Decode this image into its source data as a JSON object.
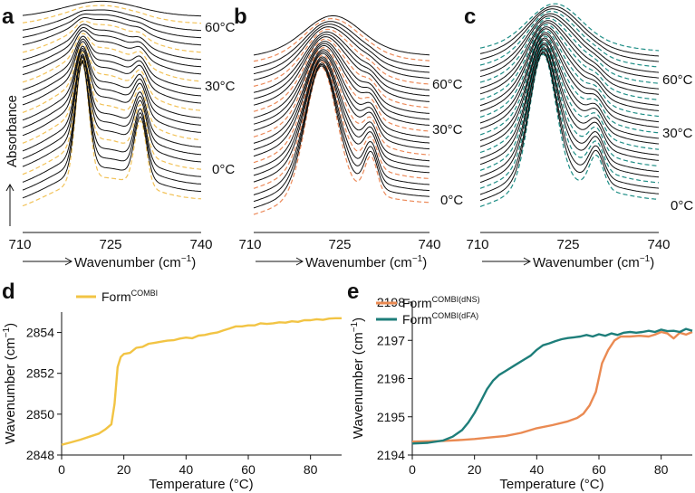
{
  "figure": {
    "panel_labels": [
      "a",
      "b",
      "c",
      "d",
      "e"
    ]
  },
  "chart_data": [
    {
      "panel": "a",
      "type": "line",
      "title": "",
      "xlabel": "Wavenumber (cm⁻¹)",
      "xlabel_main": "Wavenumber (cm",
      "xlabel_sup": "−1",
      "xlabel_close": ")",
      "ylabel": "Absorbance",
      "xlim": [
        710,
        740
      ],
      "xticks": [
        "710",
        "725",
        "740"
      ],
      "temperature_labels": [
        "60°C",
        "30°C",
        "0°C"
      ],
      "dashed_color": "#f2c257",
      "solid_color": "#111111",
      "spectrum": {
        "ordered_peaks": [
          {
            "x": 720.0,
            "h": 1.0,
            "w": 1.1
          },
          {
            "x": 729.8,
            "h": 0.55,
            "w": 1.0
          }
        ],
        "melted_peaks": [
          {
            "x": 723.5,
            "h": 0.55,
            "w": 5.5
          }
        ],
        "broad_peak": {
          "x": 722.5,
          "h": 0.45,
          "w": 8.0
        }
      },
      "n_curves": 26
    },
    {
      "panel": "b",
      "type": "line",
      "title": "",
      "xlabel": "Wavenumber (cm⁻¹)",
      "xlabel_main": "Wavenumber (cm",
      "xlabel_sup": "−1",
      "xlabel_close": ")",
      "xlim": [
        710,
        740
      ],
      "xticks": [
        "710",
        "725",
        "740"
      ],
      "temperature_labels": [
        "60°C",
        "30°C",
        "0°C"
      ],
      "dashed_color": "#ec8a5a",
      "solid_color": "#111111",
      "spectrum": {
        "ordered_peaks": [
          {
            "x": 721.5,
            "h": 1.0,
            "w": 2.6
          },
          {
            "x": 730.0,
            "h": 0.3,
            "w": 1.1
          }
        ],
        "melted_peaks": [
          {
            "x": 723.5,
            "h": 0.75,
            "w": 4.5
          }
        ],
        "broad_peak": {
          "x": 723.0,
          "h": 0.3,
          "w": 9.0
        }
      },
      "n_curves": 26
    },
    {
      "panel": "c",
      "type": "line",
      "title": "",
      "xlabel": "Wavenumber (cm⁻¹)",
      "xlabel_main": "Wavenumber (cm",
      "xlabel_sup": "−1",
      "xlabel_close": ")",
      "xlim": [
        710,
        740
      ],
      "xticks": [
        "710",
        "725",
        "740"
      ],
      "temperature_labels": [
        "60°C",
        "30°C",
        "0°C"
      ],
      "dashed_color": "#1e8e86",
      "solid_color": "#111111",
      "spectrum": {
        "ordered_peaks": [
          {
            "x": 720.5,
            "h": 1.0,
            "w": 2.2
          },
          {
            "x": 729.5,
            "h": 0.25,
            "w": 1.2
          }
        ],
        "melted_peaks": [
          {
            "x": 722.5,
            "h": 0.8,
            "w": 4.2
          }
        ],
        "broad_peak": {
          "x": 722.5,
          "h": 0.35,
          "w": 9.0
        }
      },
      "n_curves": 28
    },
    {
      "panel": "d",
      "type": "line",
      "title": "",
      "xlabel": "Temperature (°C)",
      "ylabel": "Wavenumber (cm⁻¹)",
      "ylabel_main": "Wavenumber (cm",
      "ylabel_sup": "−1",
      "ylabel_close": ")",
      "xlim": [
        0,
        90
      ],
      "ylim": [
        2848,
        2855
      ],
      "xticks": [
        0,
        20,
        40,
        60,
        80
      ],
      "yticks": [
        2848,
        2850,
        2852,
        2854
      ],
      "legend": "top-left",
      "series": [
        {
          "name": "FormCOMBI",
          "name_main": "Form",
          "name_sup": "COMBI",
          "color": "#f2c444",
          "x": [
            0,
            3,
            6,
            9,
            12,
            14,
            16,
            17,
            18,
            19,
            20,
            22,
            24,
            26,
            28,
            30,
            32,
            34,
            36,
            38,
            40,
            42,
            44,
            46,
            48,
            50,
            52,
            54,
            56,
            58,
            60,
            62,
            64,
            66,
            68,
            70,
            72,
            74,
            76,
            78,
            80,
            82,
            84,
            86,
            88,
            90
          ],
          "y": [
            2848.5,
            2848.62,
            2848.75,
            2848.9,
            2849.05,
            2849.25,
            2849.5,
            2850.5,
            2852.3,
            2852.8,
            2852.95,
            2853.0,
            2853.25,
            2853.3,
            2853.45,
            2853.5,
            2853.55,
            2853.6,
            2853.62,
            2853.7,
            2853.75,
            2853.72,
            2853.85,
            2853.88,
            2853.95,
            2854.0,
            2854.1,
            2854.2,
            2854.3,
            2854.3,
            2854.35,
            2854.35,
            2854.45,
            2854.42,
            2854.45,
            2854.5,
            2854.48,
            2854.55,
            2854.52,
            2854.6,
            2854.6,
            2854.65,
            2854.62,
            2854.68,
            2854.7,
            2854.7
          ]
        }
      ]
    },
    {
      "panel": "e",
      "type": "line",
      "title": "",
      "xlabel": "Temperature (°C)",
      "ylabel": "Wavenumber (cm⁻¹)",
      "ylabel_main": "Wavenumber (cm",
      "ylabel_sup": "−1",
      "ylabel_close": ")",
      "xlim": [
        0,
        90
      ],
      "ylim": [
        2194,
        2198
      ],
      "xticks": [
        0,
        20,
        40,
        60,
        80
      ],
      "yticks": [
        2194,
        2195,
        2196,
        2197,
        2198
      ],
      "legend": "top-left",
      "series": [
        {
          "name": "FormCOMBI(dNS)",
          "name_main": "Form",
          "name_sup": "COMBI(dNS)",
          "color": "#ea8a52",
          "x": [
            0,
            5,
            10,
            15,
            20,
            25,
            30,
            35,
            40,
            45,
            50,
            53,
            55,
            57,
            59,
            61,
            63,
            65,
            67,
            70,
            73,
            76,
            78,
            80,
            82,
            84,
            86,
            88,
            90
          ],
          "y": [
            2194.35,
            2194.36,
            2194.37,
            2194.39,
            2194.42,
            2194.46,
            2194.5,
            2194.58,
            2194.7,
            2194.78,
            2194.88,
            2194.97,
            2195.08,
            2195.3,
            2195.65,
            2196.4,
            2196.75,
            2197.0,
            2197.1,
            2197.1,
            2197.12,
            2197.1,
            2197.15,
            2197.22,
            2197.18,
            2197.05,
            2197.2,
            2197.15,
            2197.22
          ]
        },
        {
          "name": "FormCOMBI(dFA)",
          "name_main": "Form",
          "name_sup": "COMBI(dFA)",
          "color": "#1e7e7a",
          "x": [
            0,
            5,
            10,
            13,
            16,
            18,
            20,
            22,
            24,
            26,
            28,
            30,
            33,
            36,
            38,
            40,
            42,
            44,
            46,
            48,
            50,
            52,
            54,
            56,
            58,
            60,
            62,
            64,
            66,
            68,
            70,
            72,
            74,
            76,
            78,
            80,
            82,
            84,
            86,
            88,
            90
          ],
          "y": [
            2194.3,
            2194.32,
            2194.38,
            2194.48,
            2194.65,
            2194.85,
            2195.1,
            2195.4,
            2195.72,
            2195.95,
            2196.1,
            2196.2,
            2196.35,
            2196.5,
            2196.6,
            2196.75,
            2196.87,
            2196.92,
            2196.98,
            2197.03,
            2197.06,
            2197.08,
            2197.1,
            2197.14,
            2197.1,
            2197.16,
            2197.12,
            2197.18,
            2197.14,
            2197.2,
            2197.22,
            2197.2,
            2197.22,
            2197.25,
            2197.22,
            2197.28,
            2197.24,
            2197.25,
            2197.22,
            2197.3,
            2197.25
          ]
        }
      ]
    }
  ]
}
